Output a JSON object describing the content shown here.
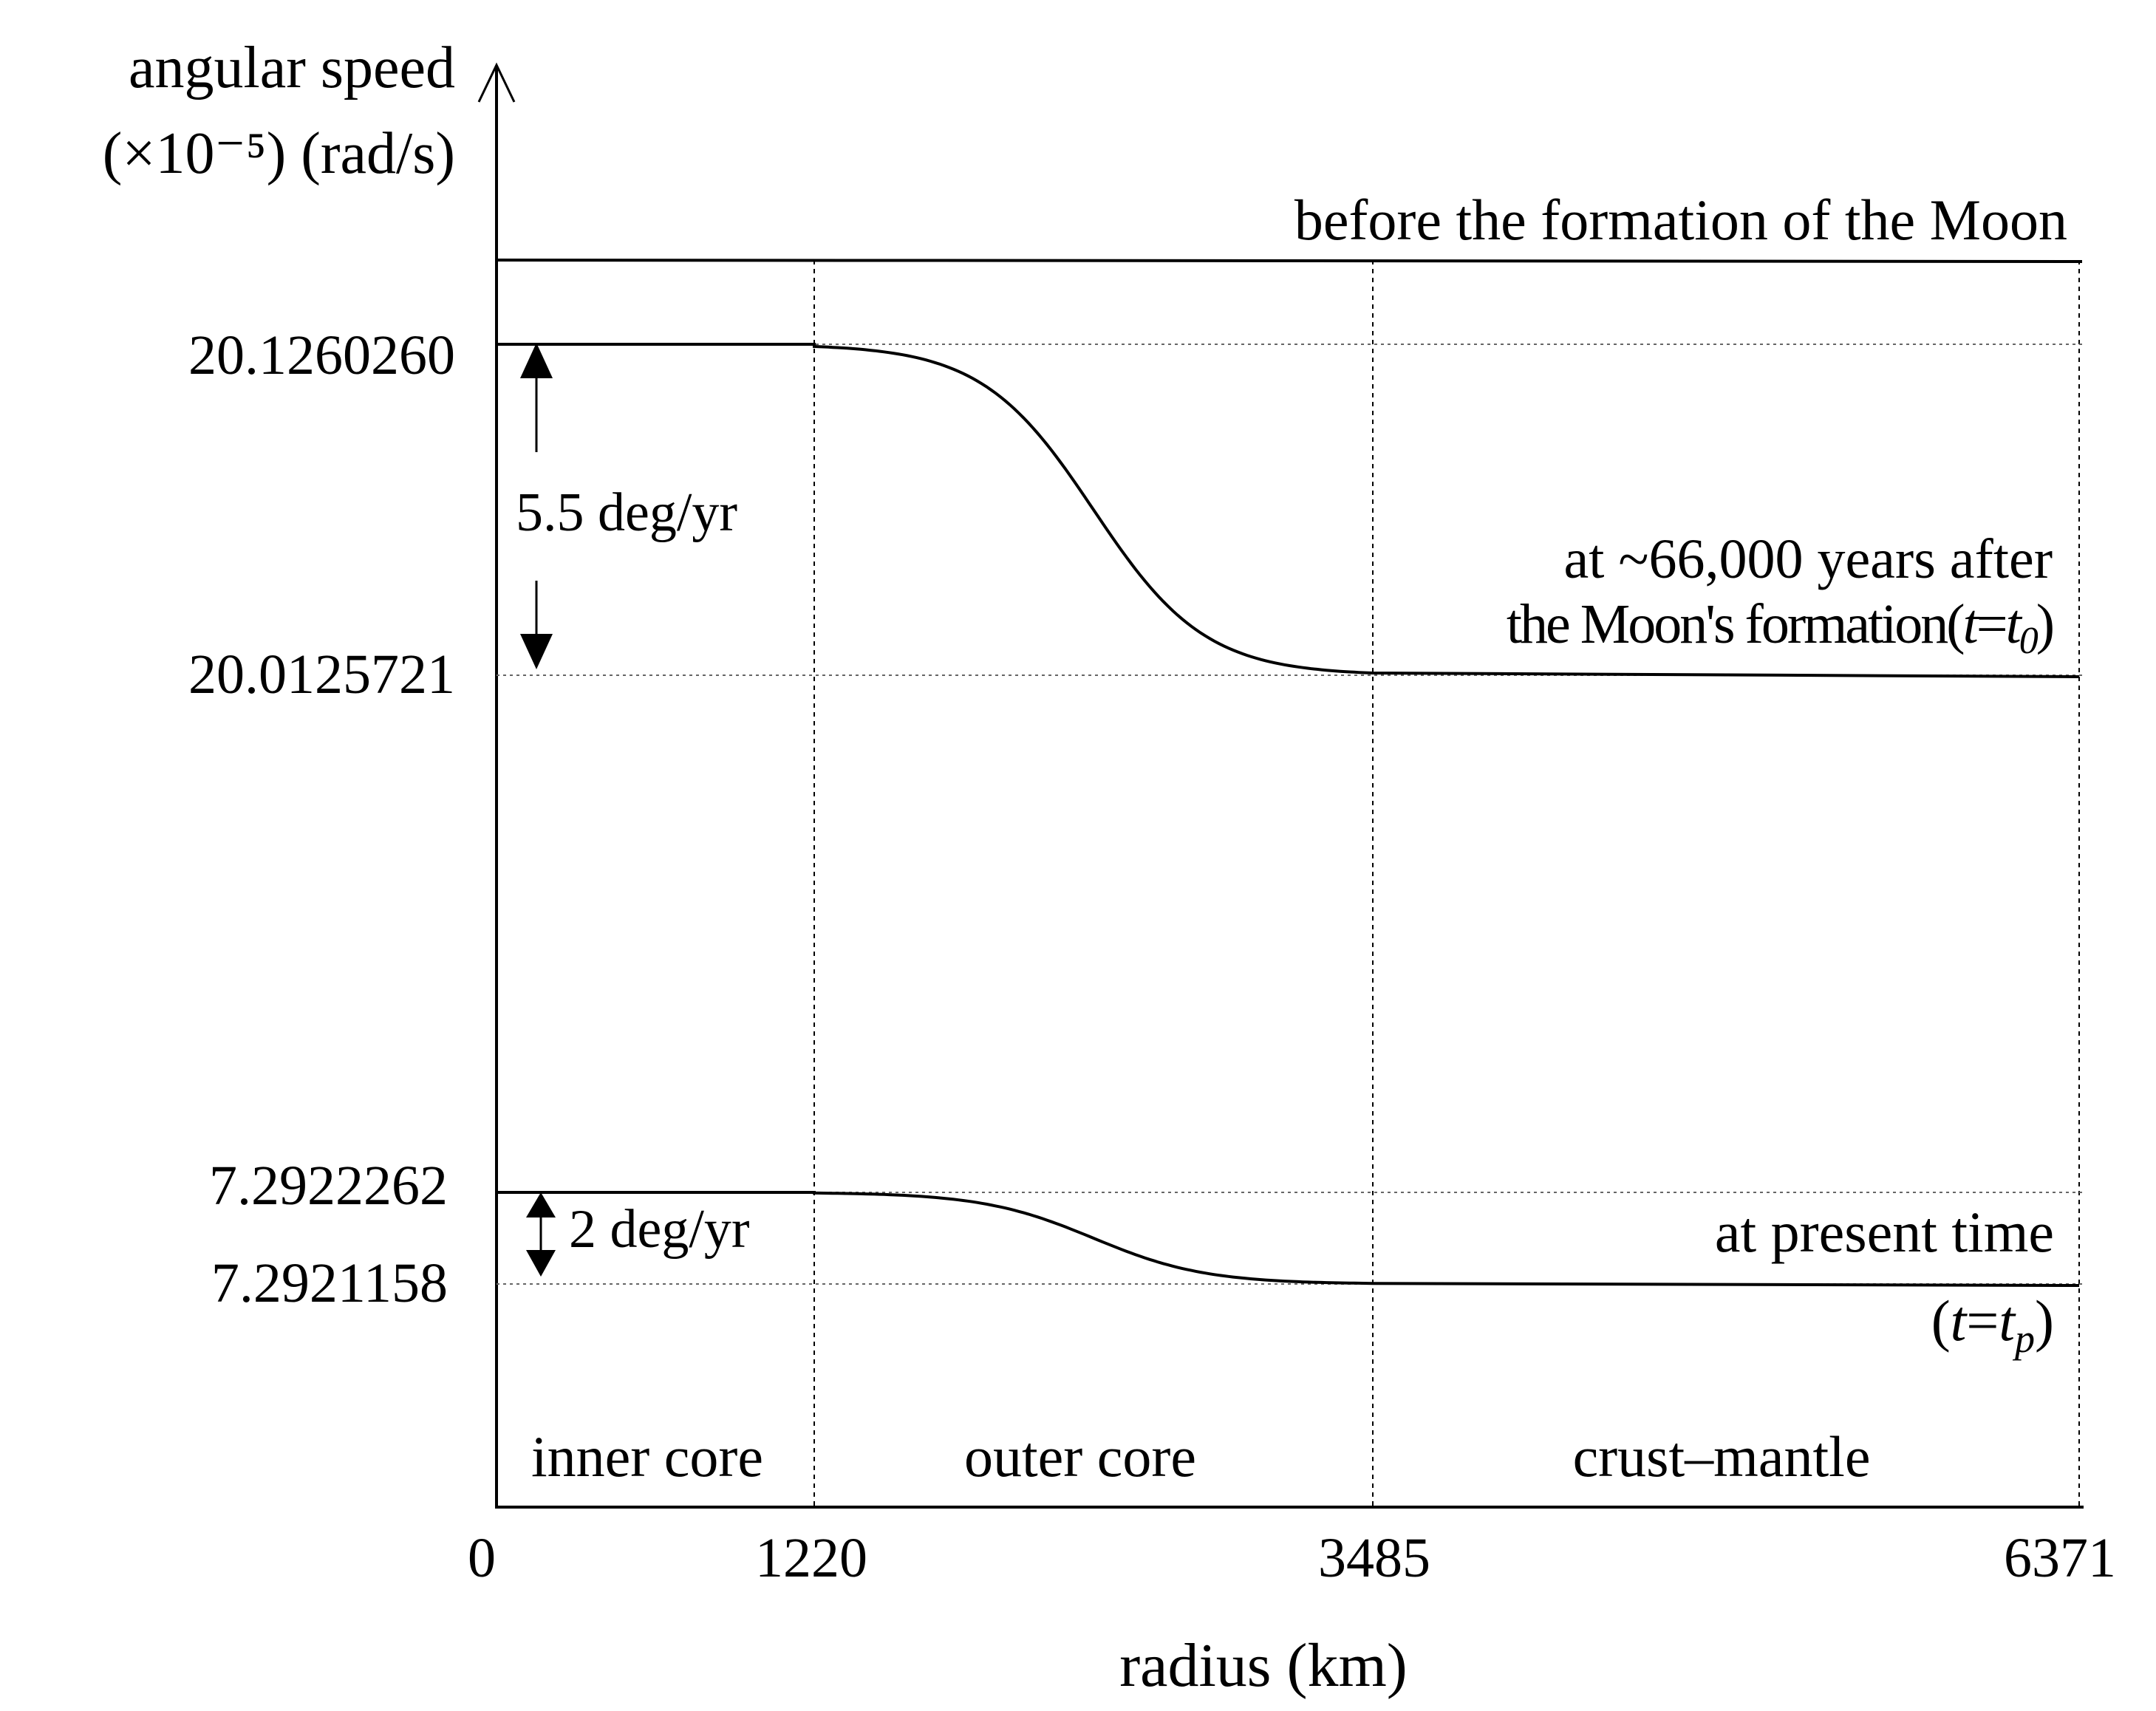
{
  "chart_data": {
    "type": "line",
    "xlabel": "radius (km)",
    "ylabel_line1": "angular speed",
    "ylabel_line2": "(×10⁻⁵) (rad/s)",
    "x_ticks": [
      "0",
      "1220",
      "3485",
      "6371"
    ],
    "x_tick_values": [
      0,
      1220,
      3485,
      6371
    ],
    "y_ticks": [
      "20.1260260",
      "20.0125721",
      "7.2922262",
      "7.2921158"
    ],
    "y_tick_values": [
      20.126026,
      20.0125721,
      7.2922262,
      7.2921158
    ],
    "regions": [
      "inner core",
      "outer core",
      "crust–mantle"
    ],
    "series": [
      {
        "name": "before the formation of the Moon",
        "shape": "constant",
        "from": 0,
        "to": 6371
      },
      {
        "name": "at ~66,000 years after the Moon's formation (t=t0)",
        "shape": "step-down",
        "high": 20.126026,
        "low": 20.0125721,
        "transition_start": 1220,
        "transition_end": 3485
      },
      {
        "name": "at present time (t=tp)",
        "shape": "step-down",
        "high": 7.2922262,
        "low": 7.2921158,
        "transition_start": 1220,
        "transition_end": 3485
      }
    ],
    "annotations": {
      "before": "before the formation of the Moon",
      "mid_line1": "at ~66,000 years after",
      "mid_line2_text": "the Moon's formation",
      "mid_line2_t": "t",
      "mid_line2_eq": "=",
      "mid_line2_sub": "0",
      "present_line1": "at present time",
      "present_t": "t",
      "present_eq": "=",
      "present_sub": "p",
      "diff_mid": "5.5 deg/yr",
      "diff_present": "2 deg/yr"
    }
  }
}
